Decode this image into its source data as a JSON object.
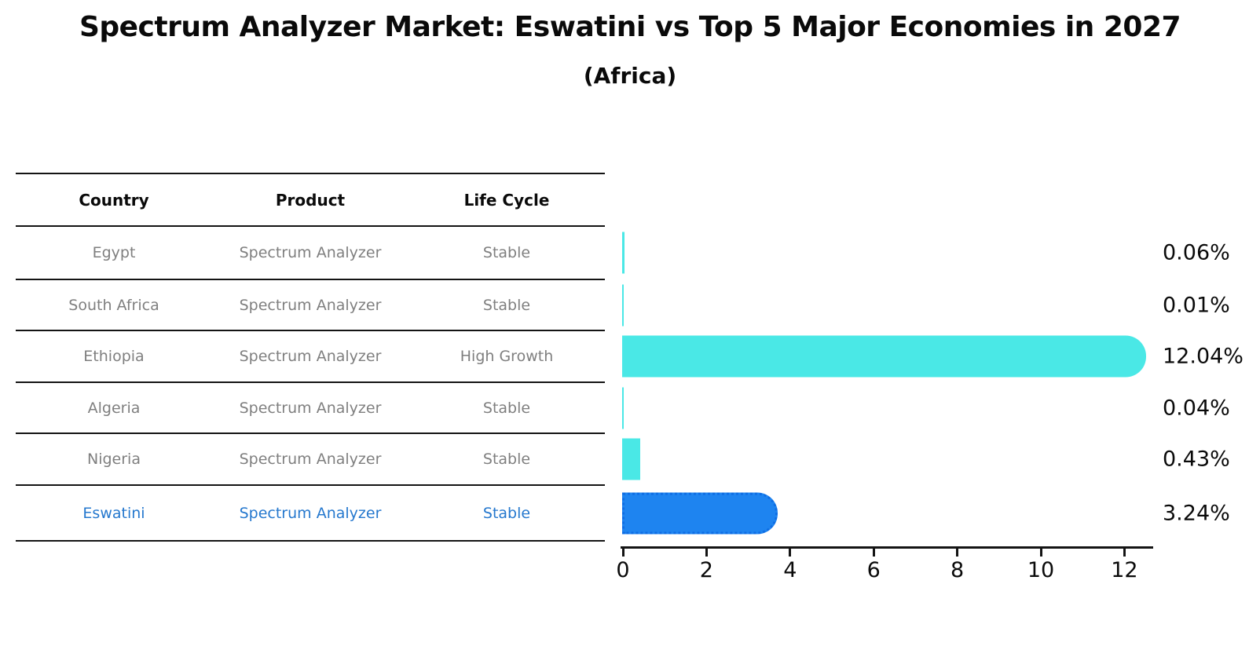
{
  "title": "Spectrum Analyzer Market: Eswatini vs Top 5 Major Economies in 2027",
  "subtitle": "(Africa)",
  "table": {
    "headers": [
      "Country",
      "Product",
      "Life Cycle"
    ],
    "rows": [
      {
        "country": "Egypt",
        "product": "Spectrum Analyzer",
        "life_cycle": "Stable",
        "highlight": false
      },
      {
        "country": "South Africa",
        "product": "Spectrum Analyzer",
        "life_cycle": "Stable",
        "highlight": false
      },
      {
        "country": "Ethiopia",
        "product": "Spectrum Analyzer",
        "life_cycle": "High Growth",
        "highlight": false
      },
      {
        "country": "Algeria",
        "product": "Spectrum Analyzer",
        "life_cycle": "Stable",
        "highlight": false
      },
      {
        "country": "Nigeria",
        "product": "Spectrum Analyzer",
        "life_cycle": "Stable",
        "highlight": false
      },
      {
        "country": "Eswatini",
        "product": "Spectrum Analyzer",
        "life_cycle": "Stable",
        "highlight": true
      }
    ]
  },
  "chart_data": {
    "type": "bar",
    "orientation": "horizontal",
    "title": "Spectrum Analyzer Market: Eswatini vs Top 5 Major Economies in 2027",
    "subtitle": "(Africa)",
    "categories": [
      "Egypt",
      "South Africa",
      "Ethiopia",
      "Algeria",
      "Nigeria",
      "Eswatini"
    ],
    "values": [
      0.06,
      0.01,
      12.04,
      0.04,
      0.43,
      3.24
    ],
    "value_labels": [
      "0.06%",
      "0.01%",
      "12.04%",
      "0.04%",
      "0.43%",
      "3.24%"
    ],
    "x_ticks": [
      "0",
      "2",
      "4",
      "6",
      "8",
      "10",
      "12"
    ],
    "xlim": [
      0,
      12.7
    ],
    "grid": false,
    "legend": "none",
    "highlight_index": 5,
    "colors": {
      "bar": "#4ae8e6",
      "highlight_bar": "#1e84f0",
      "highlight_border": "#0e6de4",
      "row_text": "#7f7f7f",
      "highlight_text": "#2578ce"
    }
  }
}
